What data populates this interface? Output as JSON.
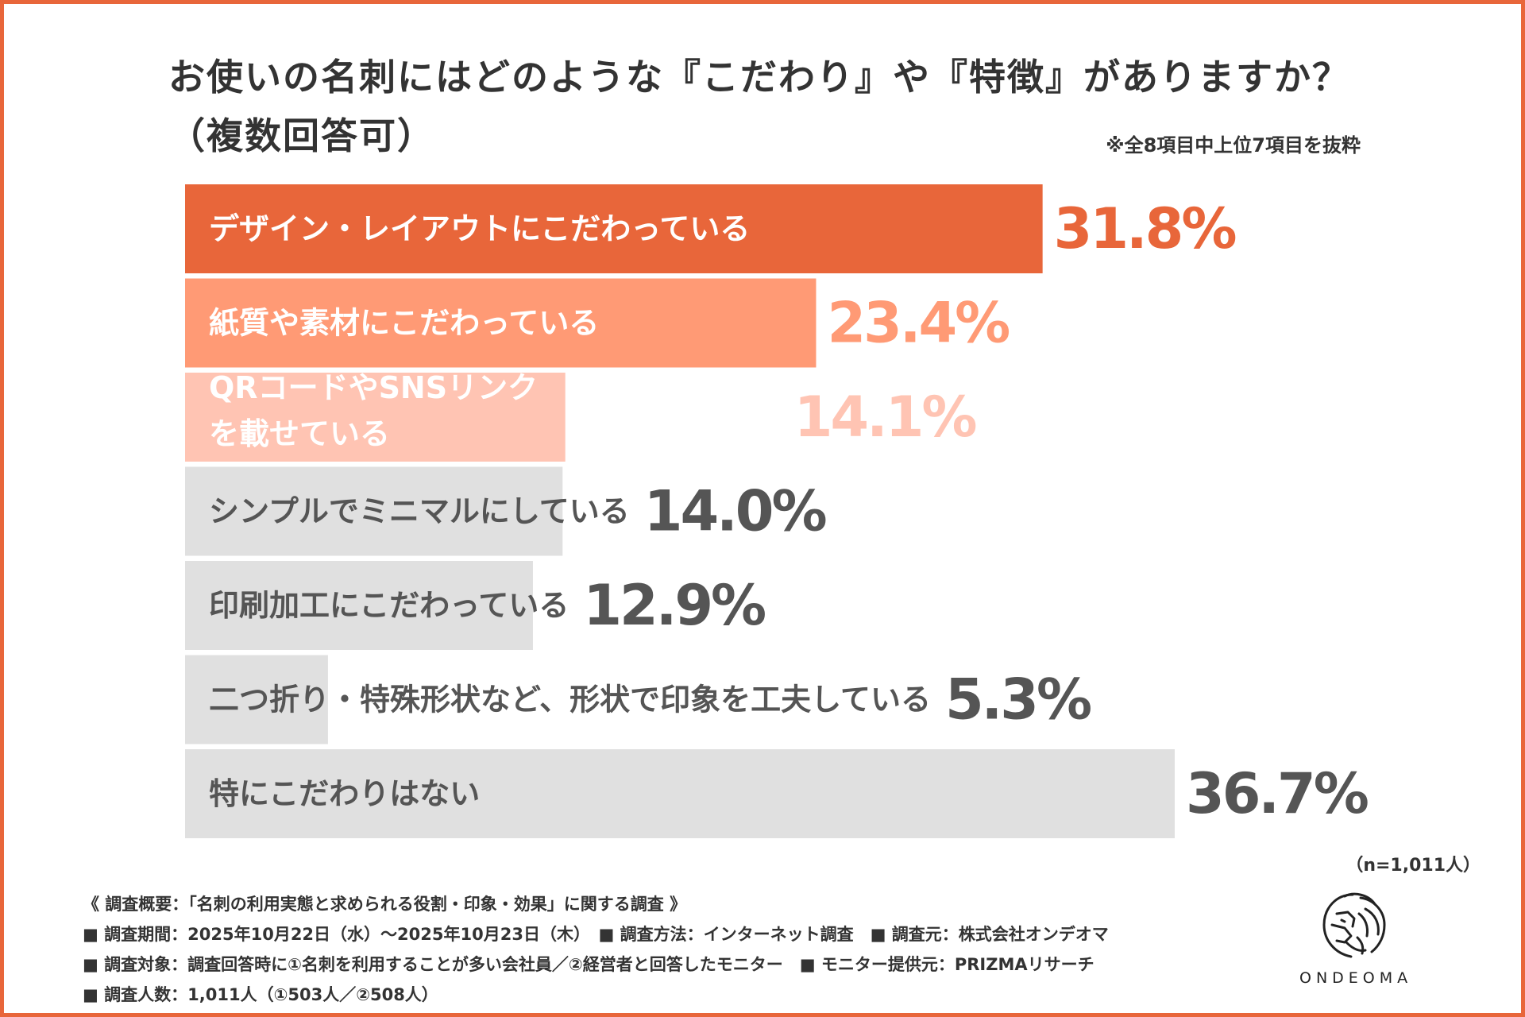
{
  "title": {
    "line1": "お使いの名刺にはどのような『こだわり』や『特徴』がありますか？",
    "line2": "（複数回答可）"
  },
  "note": "※全8項目中上位7項目を抜粋",
  "colors": {
    "accent": "#E8663A",
    "series_fills": [
      "#E8663A",
      "#FF9A75",
      "#FFC4B3",
      "#E0E0E0",
      "#E0E0E0",
      "#E0E0E0",
      "#E0E0E0"
    ],
    "value_colors": [
      "#E8663A",
      "#FF9A75",
      "#FFC4B3",
      "#555555",
      "#555555",
      "#555555",
      "#555555"
    ],
    "label_colors": [
      "#FFFFFF",
      "#FFFFFF",
      "#FFFFFF",
      "#555555",
      "#555555",
      "#555555",
      "#555555"
    ]
  },
  "chart_data": {
    "type": "bar",
    "orientation": "horizontal",
    "categories": [
      [
        "デザイン・レイアウトにこだわっている"
      ],
      [
        "紙質や素材にこだわっている"
      ],
      [
        "QRコードやSNSリンク",
        "を載せている"
      ],
      [
        "シンプルでミニマルにしている"
      ],
      [
        "印刷加工にこだわっている"
      ],
      [
        "二つ折り・特殊形状など、形状で印象を工夫している"
      ],
      [
        "特にこだわりはない"
      ]
    ],
    "values": [
      31.8,
      23.4,
      14.1,
      14.0,
      12.9,
      5.3,
      36.7
    ],
    "value_labels": [
      "31.8%",
      "23.4%",
      "14.1%",
      "14.0%",
      "12.9%",
      "5.3%",
      "36.7%"
    ],
    "unit": "%",
    "xlim": [
      0,
      36.7
    ],
    "grid": false,
    "legend": "none"
  },
  "sample_note": "（n=1,011人）",
  "survey": {
    "line1": "《 調査概要：「名刺の利用実態と求められる役割・印象・効果」に関する調査 》",
    "line2": "■ 調査期間：2025年10月22日（水）〜2025年10月23日（木）　■ 調査方法：インターネット調査　■ 調査元：株式会社オンデオマ",
    "line3": "■ 調査対象：調査回答時に①名刺を利用することが多い会社員／②経営者と回答したモニター　■ モニター提供元：PRIZMAリサーチ",
    "line4": "■ 調査人数：1,011人（①503人／②508人）"
  },
  "logo": {
    "icon": "lion-head-icon",
    "name": "ONDEOMA"
  }
}
